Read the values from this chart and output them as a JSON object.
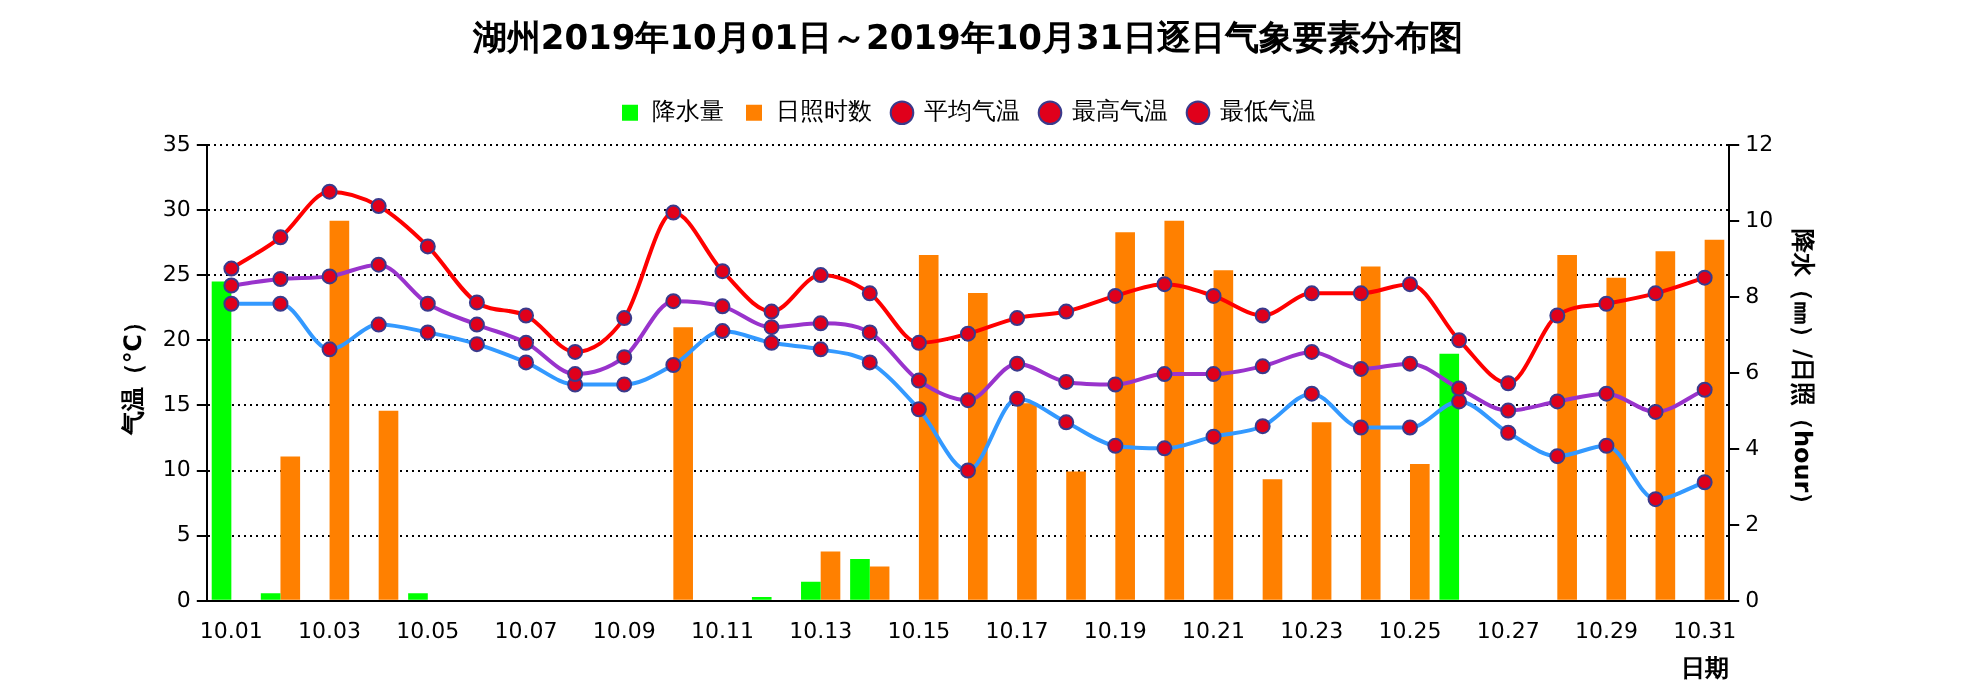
{
  "chart_data": {
    "type": "line",
    "title": "湖州2019年10月01日～2019年10月31日逐日气象要素分布图",
    "xlabel": "日期",
    "ylabel": "气温（℃）",
    "y2label": "降水（㎜）/日照（hour）",
    "categories": [
      "10.01",
      null,
      "10.03",
      null,
      "10.05",
      null,
      "10.07",
      null,
      "10.09",
      null,
      "10.11",
      null,
      "10.13",
      null,
      "10.15",
      null,
      "10.17",
      null,
      "10.19",
      null,
      "10.21",
      null,
      "10.23",
      null,
      "10.25",
      null,
      "10.27",
      null,
      "10.29",
      null,
      "10.31"
    ],
    "series": [
      {
        "name": "降水量",
        "type": "bar",
        "axis": "y2",
        "color": "#00ff00",
        "values": [
          8.4,
          0.2,
          null,
          null,
          0.2,
          null,
          null,
          null,
          null,
          null,
          null,
          0.1,
          0.5,
          1.1,
          null,
          null,
          null,
          null,
          null,
          null,
          null,
          null,
          null,
          null,
          null,
          6.5,
          null,
          null,
          null,
          null,
          null
        ]
      },
      {
        "name": "日照时数",
        "type": "bar",
        "axis": "y2",
        "color": "#ff8000",
        "values": [
          null,
          3.8,
          10.0,
          5.0,
          null,
          null,
          null,
          null,
          null,
          7.2,
          null,
          null,
          1.3,
          0.9,
          9.1,
          8.1,
          5.2,
          3.4,
          9.7,
          10.0,
          8.7,
          3.2,
          4.7,
          8.8,
          3.6,
          null,
          null,
          9.1,
          8.5,
          9.2,
          9.5
        ]
      },
      {
        "name": "平均气温",
        "color": "#9933cc",
        "values": [
          24.2,
          24.7,
          24.9,
          25.8,
          22.8,
          21.2,
          19.8,
          17.4,
          18.7,
          23.0,
          22.6,
          21.0,
          21.3,
          20.6,
          16.9,
          15.4,
          18.2,
          16.8,
          16.6,
          17.4,
          17.4,
          18.0,
          19.1,
          17.8,
          18.2,
          16.3,
          14.6,
          15.3,
          15.9,
          14.5,
          16.2
        ]
      },
      {
        "name": "最高气温",
        "color": "#ff0000",
        "values": [
          25.5,
          27.9,
          31.4,
          30.3,
          27.2,
          22.9,
          21.9,
          19.1,
          21.7,
          29.8,
          25.3,
          22.2,
          25.0,
          23.6,
          19.8,
          20.5,
          21.7,
          22.2,
          23.4,
          24.3,
          23.4,
          21.9,
          23.6,
          23.6,
          24.3,
          20.0,
          16.7,
          21.9,
          22.8,
          23.6,
          24.8
        ]
      },
      {
        "name": "最低气温",
        "color": "#3399ff",
        "values": [
          22.8,
          22.8,
          19.3,
          21.2,
          20.6,
          19.7,
          18.3,
          16.6,
          16.6,
          18.1,
          20.7,
          19.8,
          19.3,
          18.3,
          14.7,
          10.0,
          15.5,
          13.7,
          11.9,
          11.7,
          12.6,
          13.4,
          15.9,
          13.3,
          13.3,
          15.3,
          12.9,
          11.1,
          11.9,
          7.8,
          9.1
        ]
      }
    ],
    "ylim": [
      0,
      35
    ],
    "yticks": [
      0,
      5,
      10,
      15,
      20,
      25,
      30,
      35
    ],
    "y2lim": [
      0,
      12
    ],
    "y2ticks": [
      0,
      2,
      4,
      6,
      8,
      10,
      12
    ],
    "grid": "y",
    "legend": "top",
    "marker": "circle"
  }
}
